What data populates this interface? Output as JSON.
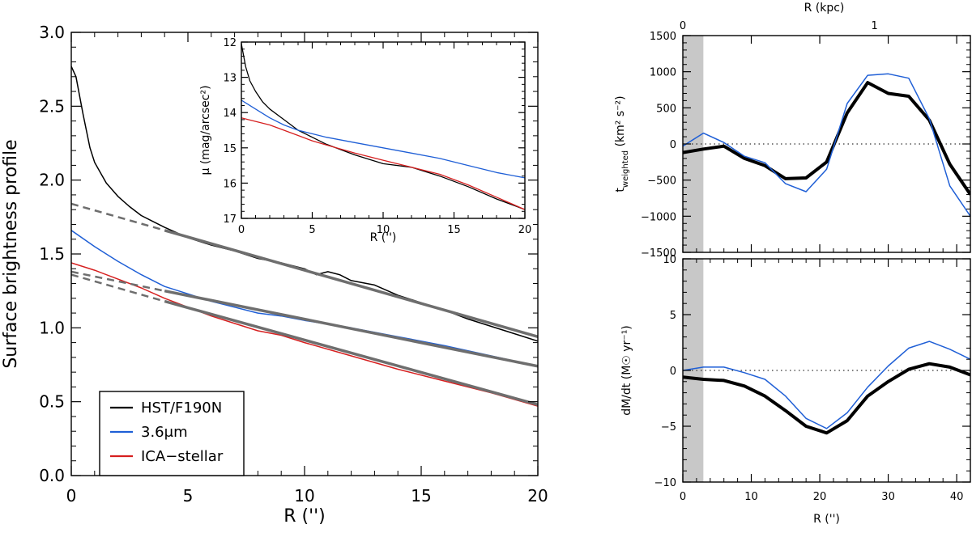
{
  "colors": {
    "hst": "#000000",
    "irac": "#1f5fd6",
    "ica": "#d61f1f",
    "fit": "#6e6e6e",
    "shade": "#c8c8c8"
  },
  "chart_data": [
    {
      "id": "main",
      "type": "line",
      "xlabel": "R ('')",
      "ylabel": "Surface brightness profile",
      "xlim": [
        0,
        20
      ],
      "ylim": [
        0.0,
        3.0
      ],
      "xticks": [
        0,
        5,
        10,
        15,
        20
      ],
      "yticks": [
        0.0,
        0.5,
        1.0,
        1.5,
        2.0,
        2.5,
        3.0
      ],
      "ytick_labels": [
        "0.0",
        "0.5",
        "1.0",
        "1.5",
        "2.0",
        "2.5",
        "3.0"
      ],
      "legend": {
        "position": "bottom-left",
        "entries": [
          {
            "label": "HST/F190N",
            "color_key": "hst"
          },
          {
            "label": "3.6μm",
            "color_key": "irac"
          },
          {
            "label": "ICA−stellar",
            "color_key": "ica"
          }
        ]
      },
      "series": [
        {
          "name": "HST/F190N",
          "color_key": "hst",
          "width": 1.5,
          "x": [
            0,
            0.2,
            0.5,
            0.8,
            1.0,
            1.5,
            2.0,
            2.5,
            3.0,
            3.5,
            4.0,
            5.0,
            6.0,
            7.0,
            8.0,
            9.0,
            10.0,
            10.5,
            11.0,
            11.5,
            12.0,
            13.0,
            14.0,
            15.0,
            16.0,
            17.0,
            18.0,
            19.0,
            20.0
          ],
          "y": [
            2.77,
            2.7,
            2.45,
            2.22,
            2.12,
            1.98,
            1.89,
            1.82,
            1.76,
            1.72,
            1.68,
            1.61,
            1.56,
            1.52,
            1.47,
            1.44,
            1.4,
            1.36,
            1.38,
            1.36,
            1.32,
            1.29,
            1.22,
            1.17,
            1.12,
            1.06,
            1.01,
            0.96,
            0.91
          ]
        },
        {
          "name": "3.6μm",
          "color_key": "irac",
          "width": 1.5,
          "x": [
            0,
            1,
            2,
            3,
            4,
            5,
            6,
            7,
            8,
            9,
            10,
            12,
            14,
            16,
            18,
            20
          ],
          "y": [
            1.66,
            1.55,
            1.45,
            1.36,
            1.28,
            1.23,
            1.18,
            1.14,
            1.1,
            1.08,
            1.05,
            1.0,
            0.94,
            0.88,
            0.81,
            0.74
          ]
        },
        {
          "name": "ICA−stellar",
          "color_key": "ica",
          "width": 1.5,
          "x": [
            0,
            1,
            2,
            3,
            4,
            5,
            6,
            7,
            8,
            9,
            10,
            12,
            14,
            16,
            18,
            20
          ],
          "y": [
            1.44,
            1.39,
            1.33,
            1.27,
            1.2,
            1.14,
            1.08,
            1.03,
            0.98,
            0.95,
            0.9,
            0.81,
            0.72,
            0.64,
            0.56,
            0.47
          ]
        },
        {
          "name": "fit-hst",
          "color_key": "fit",
          "width": 3.5,
          "x": [
            4,
            20
          ],
          "y": [
            1.66,
            0.94
          ]
        },
        {
          "name": "fit-irac",
          "color_key": "fit",
          "width": 3.5,
          "x": [
            4,
            20
          ],
          "y": [
            1.25,
            0.74
          ]
        },
        {
          "name": "fit-ica",
          "color_key": "fit",
          "width": 3.5,
          "x": [
            4,
            20
          ],
          "y": [
            1.18,
            0.48
          ]
        },
        {
          "name": "fit-hst-extrap",
          "color_key": "fit",
          "width": 2.5,
          "dashed": true,
          "x": [
            0,
            4
          ],
          "y": [
            1.84,
            1.66
          ]
        },
        {
          "name": "fit-irac-extrap",
          "color_key": "fit",
          "width": 2.5,
          "dashed": true,
          "x": [
            0,
            4
          ],
          "y": [
            1.38,
            1.25
          ]
        },
        {
          "name": "fit-ica-extrap",
          "color_key": "fit",
          "width": 2.5,
          "dashed": true,
          "x": [
            0,
            4
          ],
          "y": [
            1.36,
            1.18
          ]
        }
      ]
    },
    {
      "id": "inset",
      "type": "line",
      "xlabel": "R ('')",
      "ylabel": "μ (mag/arcsec²)",
      "xlim": [
        0,
        20
      ],
      "ylim": [
        17,
        12
      ],
      "y_inverted": true,
      "xticks": [
        0,
        5,
        10,
        15,
        20
      ],
      "yticks": [
        12,
        13,
        14,
        15,
        16,
        17
      ],
      "series": [
        {
          "name": "HST/F190N",
          "color_key": "hst",
          "width": 1.3,
          "x": [
            0,
            0.3,
            0.6,
            1.0,
            1.5,
            2.0,
            3.0,
            4.0,
            5.0,
            6.0,
            8.0,
            10.0,
            12.0,
            14.0,
            16.0,
            18.0,
            20.0
          ],
          "y": [
            12.05,
            12.7,
            13.1,
            13.4,
            13.7,
            13.9,
            14.2,
            14.5,
            14.7,
            14.9,
            15.2,
            15.45,
            15.55,
            15.8,
            16.1,
            16.45,
            16.75
          ]
        },
        {
          "name": "3.6μm",
          "color_key": "irac",
          "width": 1.3,
          "x": [
            0,
            1,
            2,
            3,
            4,
            5,
            6,
            8,
            10,
            12,
            14,
            16,
            18,
            20
          ],
          "y": [
            13.65,
            13.9,
            14.15,
            14.35,
            14.5,
            14.6,
            14.7,
            14.85,
            15.0,
            15.15,
            15.3,
            15.5,
            15.7,
            15.85
          ]
        },
        {
          "name": "ICA−stellar",
          "color_key": "ica",
          "width": 1.3,
          "x": [
            0,
            1,
            2,
            3,
            4,
            5,
            6,
            8,
            10,
            12,
            14,
            16,
            18,
            20
          ],
          "y": [
            14.15,
            14.25,
            14.35,
            14.5,
            14.65,
            14.8,
            14.92,
            15.15,
            15.35,
            15.55,
            15.75,
            16.05,
            16.4,
            16.75
          ]
        }
      ]
    },
    {
      "id": "torque",
      "type": "line",
      "ylabel": "t_weighted (km² s⁻²)",
      "ylabel_main": "t",
      "ylabel_sub": "weighted",
      "ylabel_rest": " (km² s⁻²)",
      "top_axis_label": "R (kpc)",
      "top_ticks": [
        {
          "value": 0,
          "label": "0",
          "x_arcsec": 0
        },
        {
          "value": 1,
          "label": "1",
          "x_arcsec": 28
        }
      ],
      "xlim": [
        0,
        42
      ],
      "ylim": [
        -1500,
        1500
      ],
      "xticks": [
        0,
        10,
        20,
        30,
        40
      ],
      "yticks": [
        -1500,
        -1000,
        -500,
        0,
        500,
        1000,
        1500
      ],
      "ytick_labels": [
        "−1500",
        "−1000",
        "−500",
        "0",
        "500",
        "1000",
        "1500"
      ],
      "shaded_region_x": [
        0,
        3
      ],
      "zero_line": true,
      "series": [
        {
          "name": "HST/F190N",
          "color_key": "hst",
          "width": 4,
          "x": [
            0,
            3,
            6,
            9,
            12,
            15,
            18,
            21,
            24,
            27,
            30,
            33,
            36,
            39,
            42
          ],
          "y": [
            -120,
            -70,
            -30,
            -200,
            -300,
            -480,
            -470,
            -250,
            430,
            850,
            700,
            660,
            330,
            -280,
            -700
          ]
        },
        {
          "name": "3.6μm",
          "color_key": "irac",
          "width": 1.5,
          "x": [
            0,
            3,
            6,
            9,
            12,
            15,
            18,
            21,
            24,
            27,
            30,
            33,
            36,
            39,
            42
          ],
          "y": [
            -30,
            150,
            20,
            -170,
            -260,
            -550,
            -660,
            -350,
            560,
            950,
            970,
            910,
            350,
            -580,
            -1000
          ]
        }
      ]
    },
    {
      "id": "inflow",
      "type": "line",
      "xlabel": "R ('')",
      "ylabel": "dM/dt (M☉ yr⁻¹)",
      "xlim": [
        0,
        42
      ],
      "ylim": [
        -10,
        10
      ],
      "xticks": [
        0,
        10,
        20,
        30,
        40
      ],
      "yticks": [
        -10,
        -5,
        0,
        5,
        10
      ],
      "ytick_labels": [
        "−10",
        "−5",
        "0",
        "5",
        "10"
      ],
      "shaded_region_x": [
        0,
        3
      ],
      "zero_line": true,
      "series": [
        {
          "name": "HST/F190N",
          "color_key": "hst",
          "width": 4,
          "x": [
            0,
            3,
            6,
            9,
            12,
            15,
            18,
            21,
            24,
            27,
            30,
            33,
            36,
            39,
            42
          ],
          "y": [
            -0.6,
            -0.8,
            -0.9,
            -1.4,
            -2.3,
            -3.6,
            -5.0,
            -5.6,
            -4.5,
            -2.3,
            -1.0,
            0.1,
            0.6,
            0.3,
            -0.4
          ]
        },
        {
          "name": "3.6μm",
          "color_key": "irac",
          "width": 1.5,
          "x": [
            0,
            3,
            6,
            9,
            12,
            15,
            18,
            21,
            24,
            27,
            30,
            33,
            36,
            39,
            42
          ],
          "y": [
            0.0,
            0.3,
            0.3,
            -0.2,
            -0.8,
            -2.3,
            -4.3,
            -5.2,
            -3.8,
            -1.5,
            0.4,
            2.0,
            2.6,
            1.9,
            1.0
          ]
        }
      ]
    }
  ]
}
